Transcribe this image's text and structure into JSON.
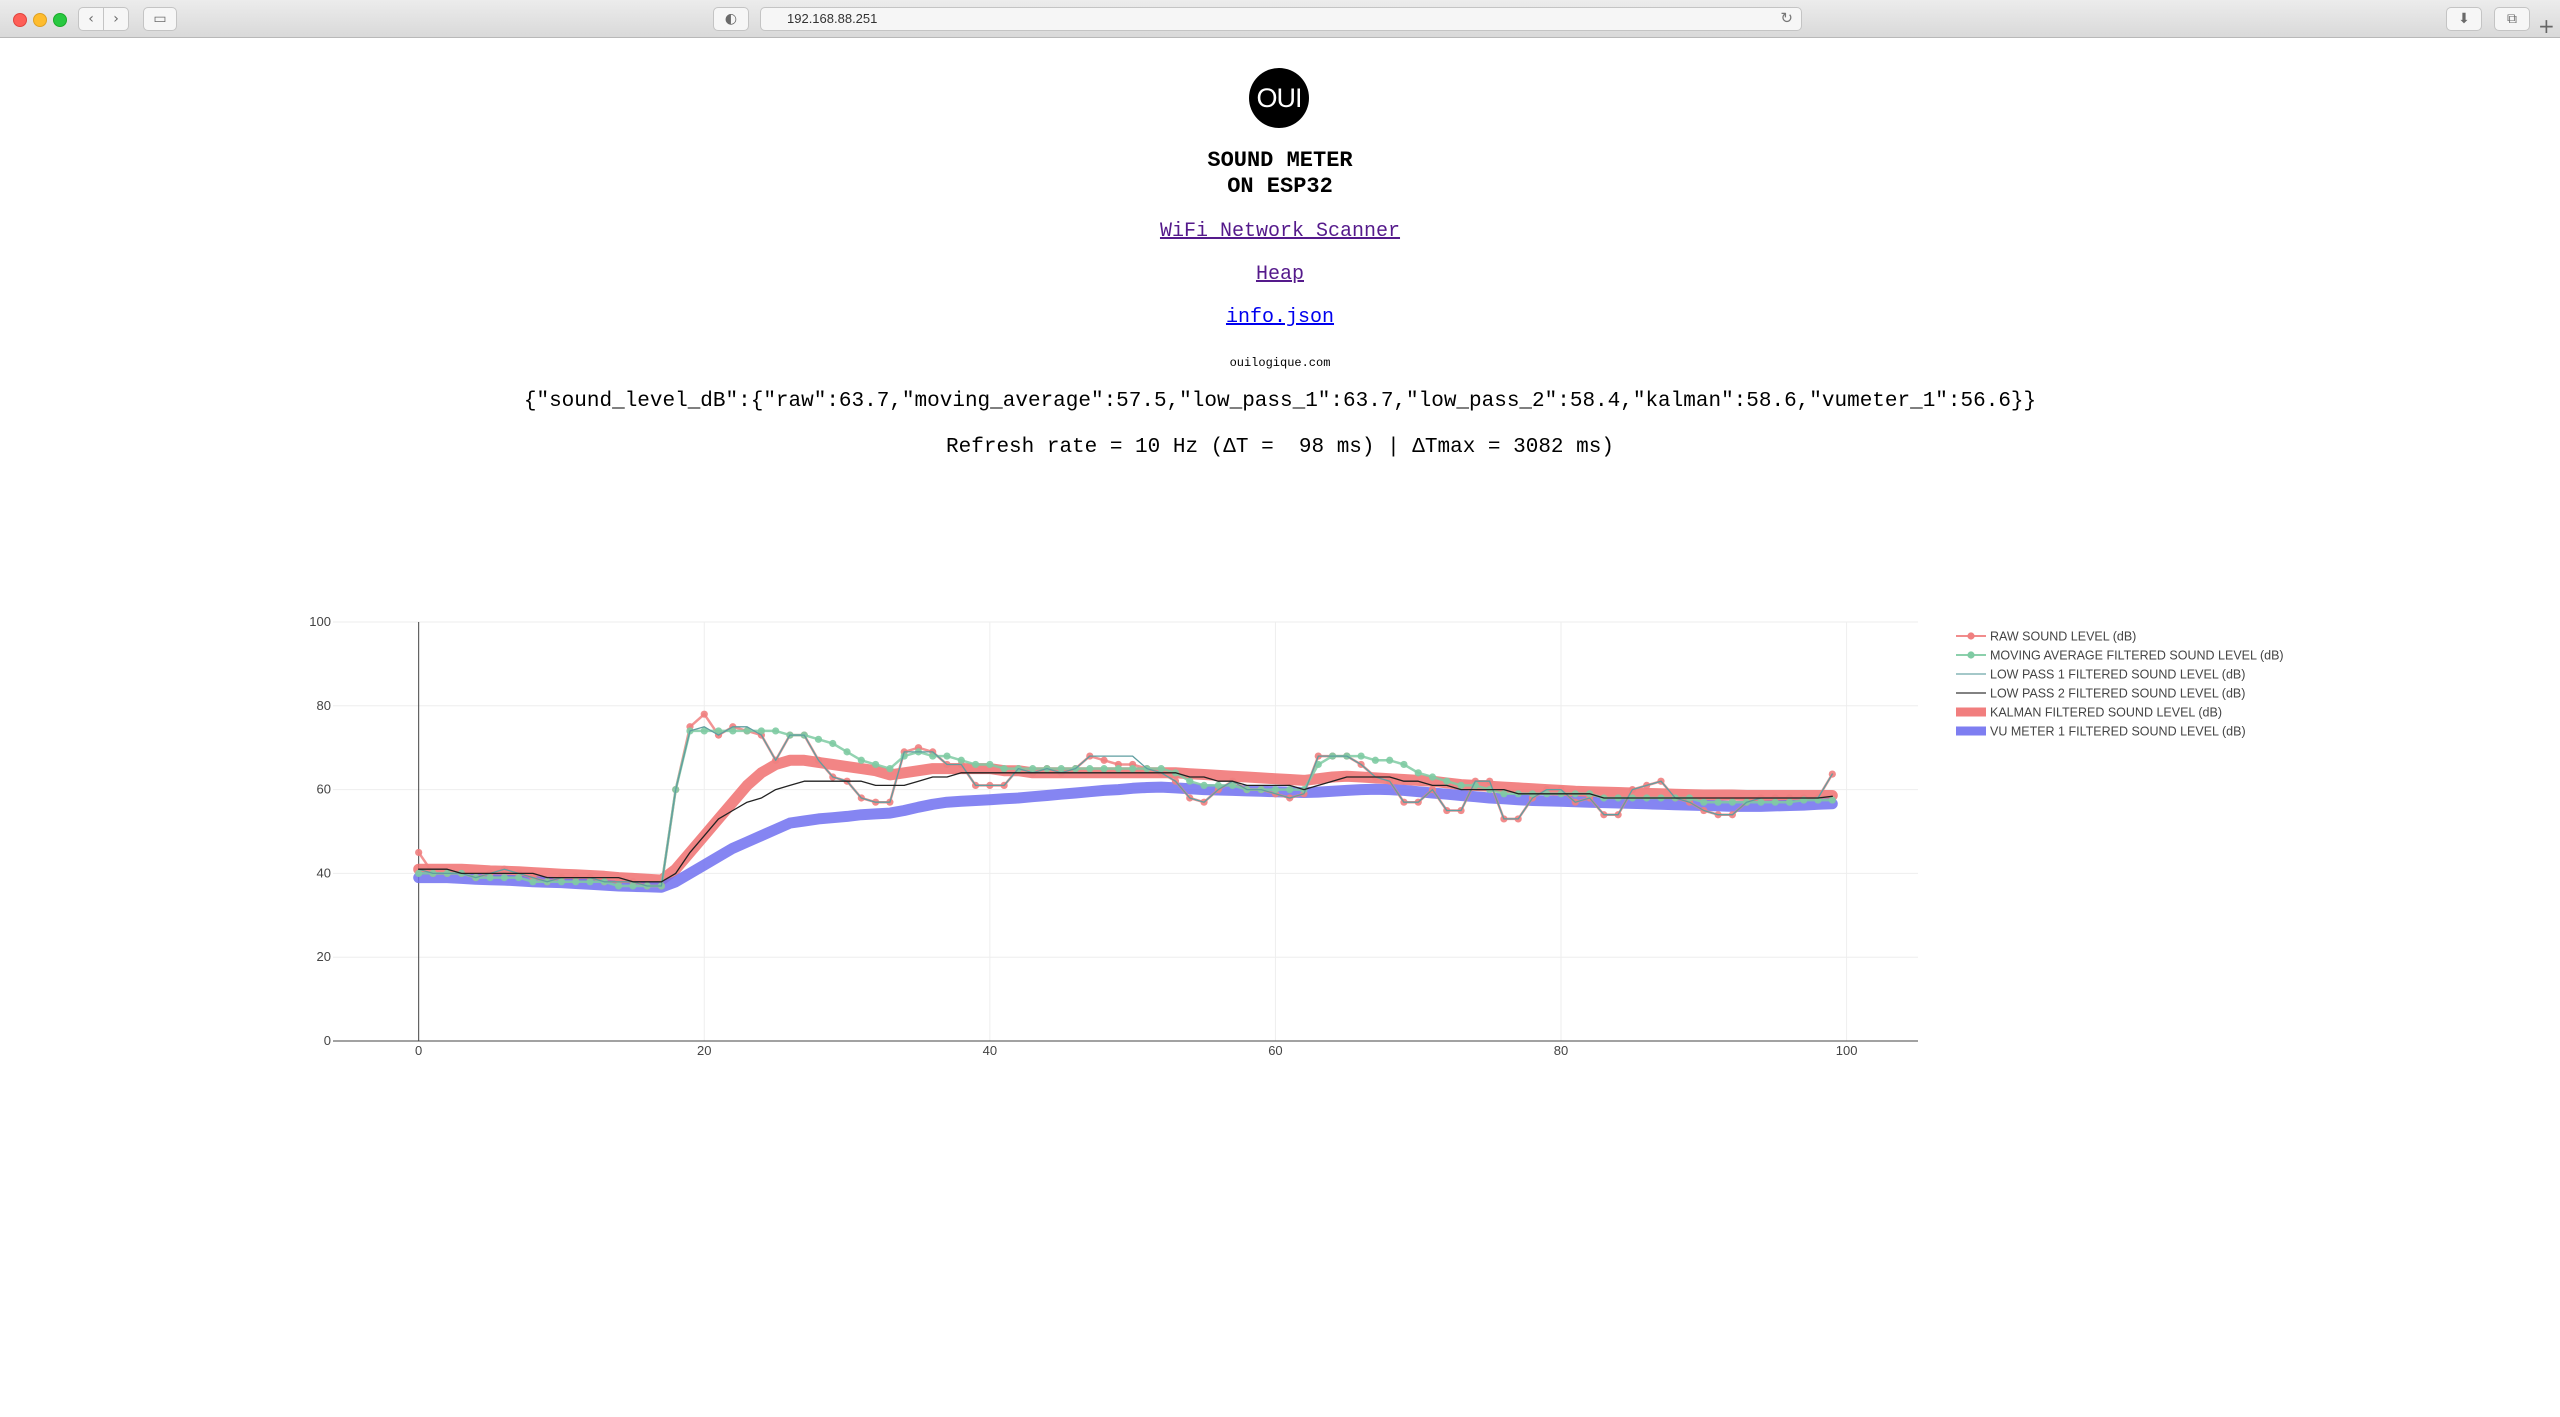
{
  "browser": {
    "url": "192.168.88.251"
  },
  "page": {
    "logo_text": "OUI",
    "title_line1": "SOUND METER",
    "title_line2": "ON ESP32",
    "links": {
      "wifi": "WiFi Network Scanner",
      "heap": "Heap",
      "info": "info.json"
    },
    "domain": "ouilogique.com",
    "json_line": "{\"sound_level_dB\":{\"raw\":63.7,\"moving_average\":57.5,\"low_pass_1\":63.7,\"low_pass_2\":58.4,\"kalman\":58.6,\"vumeter_1\":56.6}}",
    "refresh_line": "Refresh rate = 10 Hz (ΔT =  98 ms) | ΔTmax = 3082 ms)"
  },
  "chart_data": {
    "type": "line",
    "xlim": [
      -6,
      105
    ],
    "ylim": [
      0,
      100
    ],
    "xticks": [
      0,
      20,
      40,
      60,
      80,
      100
    ],
    "yticks": [
      0,
      20,
      40,
      60,
      80,
      100
    ],
    "grid": true,
    "legend_position": "right",
    "x": [
      0,
      1,
      2,
      3,
      4,
      5,
      6,
      7,
      8,
      9,
      10,
      11,
      12,
      13,
      14,
      15,
      16,
      17,
      18,
      19,
      20,
      21,
      22,
      23,
      24,
      25,
      26,
      27,
      28,
      29,
      30,
      31,
      32,
      33,
      34,
      35,
      36,
      37,
      38,
      39,
      40,
      41,
      42,
      43,
      44,
      45,
      46,
      47,
      48,
      49,
      50,
      51,
      52,
      53,
      54,
      55,
      56,
      57,
      58,
      59,
      60,
      61,
      62,
      63,
      64,
      65,
      66,
      67,
      68,
      69,
      70,
      71,
      72,
      73,
      74,
      75,
      76,
      77,
      78,
      79,
      80,
      81,
      82,
      83,
      84,
      85,
      86,
      87,
      88,
      89,
      90,
      91,
      92,
      93,
      94,
      95,
      96,
      97,
      98,
      99
    ],
    "series": [
      {
        "name": "RAW SOUND LEVEL (dB)",
        "color": "#f08080",
        "style": "line-markers",
        "values": [
          45,
          40,
          40,
          40,
          39,
          40,
          41,
          40,
          39,
          38,
          39,
          39,
          39,
          38,
          38,
          38,
          37,
          37,
          60,
          75,
          78,
          73,
          75,
          74,
          73,
          67,
          73,
          73,
          67,
          63,
          62,
          58,
          57,
          57,
          69,
          70,
          69,
          66,
          66,
          61,
          61,
          61,
          65,
          64,
          65,
          64,
          65,
          68,
          67,
          66,
          66,
          65,
          64,
          62,
          58,
          57,
          60,
          62,
          60,
          60,
          59,
          58,
          59,
          68,
          68,
          68,
          66,
          63,
          62,
          57,
          57,
          60,
          55,
          55,
          62,
          62,
          53,
          53,
          58,
          60,
          60,
          57,
          58,
          54,
          54,
          60,
          61,
          62,
          58,
          57,
          55,
          54,
          54,
          57,
          58,
          58,
          58,
          58,
          58,
          63.7
        ]
      },
      {
        "name": "MOVING AVERAGE FILTERED SOUND LEVEL (dB)",
        "color": "#7fcba3",
        "style": "line-markers",
        "values": [
          40,
          40,
          40,
          40,
          39,
          39,
          39,
          39,
          38,
          38,
          38,
          38,
          38,
          38,
          37,
          37,
          37,
          37,
          60,
          74,
          74,
          74,
          74,
          74,
          74,
          74,
          73,
          73,
          72,
          71,
          69,
          67,
          66,
          65,
          68,
          69,
          68,
          68,
          67,
          66,
          66,
          65,
          65,
          65,
          65,
          65,
          65,
          65,
          65,
          65,
          65,
          65,
          65,
          64,
          62,
          61,
          61,
          61,
          60,
          60,
          60,
          60,
          60,
          66,
          68,
          68,
          68,
          67,
          67,
          66,
          64,
          63,
          62,
          61,
          61,
          60,
          59,
          59,
          59,
          59,
          59,
          59,
          59,
          58,
          58,
          58,
          58,
          58,
          58,
          58,
          57,
          57,
          57,
          57,
          57,
          57,
          57,
          57.5,
          57.5,
          57.5
        ]
      },
      {
        "name": "LOW PASS 1 FILTERED SOUND LEVEL (dB)",
        "color": "#5f9ea0",
        "style": "line",
        "values": [
          41,
          40,
          40,
          40,
          39,
          40,
          41,
          40,
          39,
          38,
          39,
          39,
          39,
          38,
          38,
          38,
          37,
          37,
          60,
          74,
          75,
          73,
          75,
          75,
          73,
          67,
          73,
          73,
          67,
          63,
          62,
          58,
          57,
          57,
          69,
          69,
          69,
          66,
          66,
          61,
          61,
          61,
          65,
          64,
          65,
          64,
          65,
          68,
          68,
          68,
          68,
          65,
          64,
          62,
          58,
          57,
          60,
          62,
          60,
          60,
          59,
          58,
          59,
          68,
          68,
          68,
          66,
          63,
          62,
          57,
          57,
          60,
          55,
          55,
          62,
          62,
          53,
          53,
          58,
          60,
          60,
          57,
          58,
          54,
          54,
          60,
          61,
          62,
          58,
          57,
          55,
          54,
          54,
          57,
          58,
          58,
          58,
          58,
          58,
          63.7
        ]
      },
      {
        "name": "LOW PASS 2 FILTERED SOUND LEVEL (dB)",
        "color": "#222222",
        "style": "line",
        "values": [
          41,
          41,
          41,
          40,
          40,
          40,
          40,
          40,
          40,
          39,
          39,
          39,
          39,
          39,
          39,
          38,
          38,
          38,
          40,
          45,
          49,
          53,
          55,
          57,
          58,
          60,
          61,
          62,
          62,
          62,
          62,
          62,
          61,
          61,
          61,
          62,
          63,
          63,
          64,
          64,
          64,
          64,
          64,
          64,
          64,
          64,
          64,
          64,
          64,
          64,
          64,
          64,
          64,
          64,
          63,
          63,
          62,
          62,
          61,
          61,
          61,
          61,
          60,
          61,
          62,
          63,
          63,
          63,
          63,
          62,
          62,
          61,
          61,
          60,
          60,
          60,
          60,
          59,
          59,
          59,
          59,
          59,
          59,
          58,
          58,
          58,
          58,
          58,
          58,
          58,
          58,
          58,
          58,
          58,
          58,
          58,
          58,
          58,
          58,
          58.4
        ]
      },
      {
        "name": "KALMAN FILTERED SOUND LEVEL (dB)",
        "color": "#f07070",
        "style": "band",
        "values": [
          41,
          41,
          41,
          41,
          40.8,
          40.6,
          40.5,
          40.4,
          40.2,
          40,
          39.8,
          39.7,
          39.5,
          39.3,
          39,
          38.8,
          38.6,
          38.4,
          41,
          45,
          49,
          53,
          57,
          61,
          64,
          66,
          67,
          67,
          66.5,
          66,
          65.5,
          65,
          64.5,
          63.5,
          64,
          64.5,
          65,
          65,
          65,
          65,
          65,
          64.5,
          64.5,
          64,
          64,
          64,
          64,
          64,
          64,
          64,
          64,
          64,
          64,
          64,
          63.8,
          63.6,
          63.4,
          63.2,
          63,
          62.8,
          62.6,
          62.4,
          62.2,
          62.6,
          63,
          63.2,
          63,
          62.8,
          62.6,
          62.4,
          62.2,
          62,
          61.6,
          61.2,
          61,
          60.8,
          60.6,
          60.4,
          60.2,
          60,
          59.8,
          59.6,
          59.5,
          59.4,
          59.3,
          59.2,
          59.1,
          59,
          58.9,
          58.8,
          58.7,
          58.7,
          58.7,
          58.6,
          58.6,
          58.6,
          58.6,
          58.6,
          58.6,
          58.6
        ]
      },
      {
        "name": "VU METER 1 FILTERED SOUND LEVEL (dB)",
        "color": "#7070f0",
        "style": "band",
        "values": [
          39,
          39,
          39,
          38.8,
          38.6,
          38.5,
          38.4,
          38.2,
          38,
          37.9,
          37.8,
          37.6,
          37.4,
          37.2,
          37,
          36.9,
          36.8,
          36.7,
          38,
          40,
          42,
          44,
          46,
          47.5,
          49,
          50.5,
          52,
          52.5,
          53,
          53.3,
          53.6,
          54,
          54.2,
          54.4,
          55,
          55.8,
          56.5,
          57,
          57.2,
          57.4,
          57.6,
          57.8,
          58,
          58.3,
          58.6,
          58.9,
          59.2,
          59.5,
          59.8,
          60,
          60.3,
          60.5,
          60.6,
          60.4,
          60.2,
          60,
          59.9,
          59.8,
          59.7,
          59.6,
          59.5,
          59.4,
          59.3,
          59.4,
          59.6,
          59.8,
          60,
          60.1,
          60,
          59.8,
          59.5,
          59.2,
          58.9,
          58.6,
          58.3,
          58,
          57.8,
          57.6,
          57.4,
          57.3,
          57.2,
          57.1,
          57,
          56.9,
          56.8,
          56.7,
          56.6,
          56.5,
          56.4,
          56.3,
          56.2,
          56.1,
          56,
          56,
          56,
          56.1,
          56.2,
          56.3,
          56.5,
          56.6
        ]
      }
    ]
  }
}
